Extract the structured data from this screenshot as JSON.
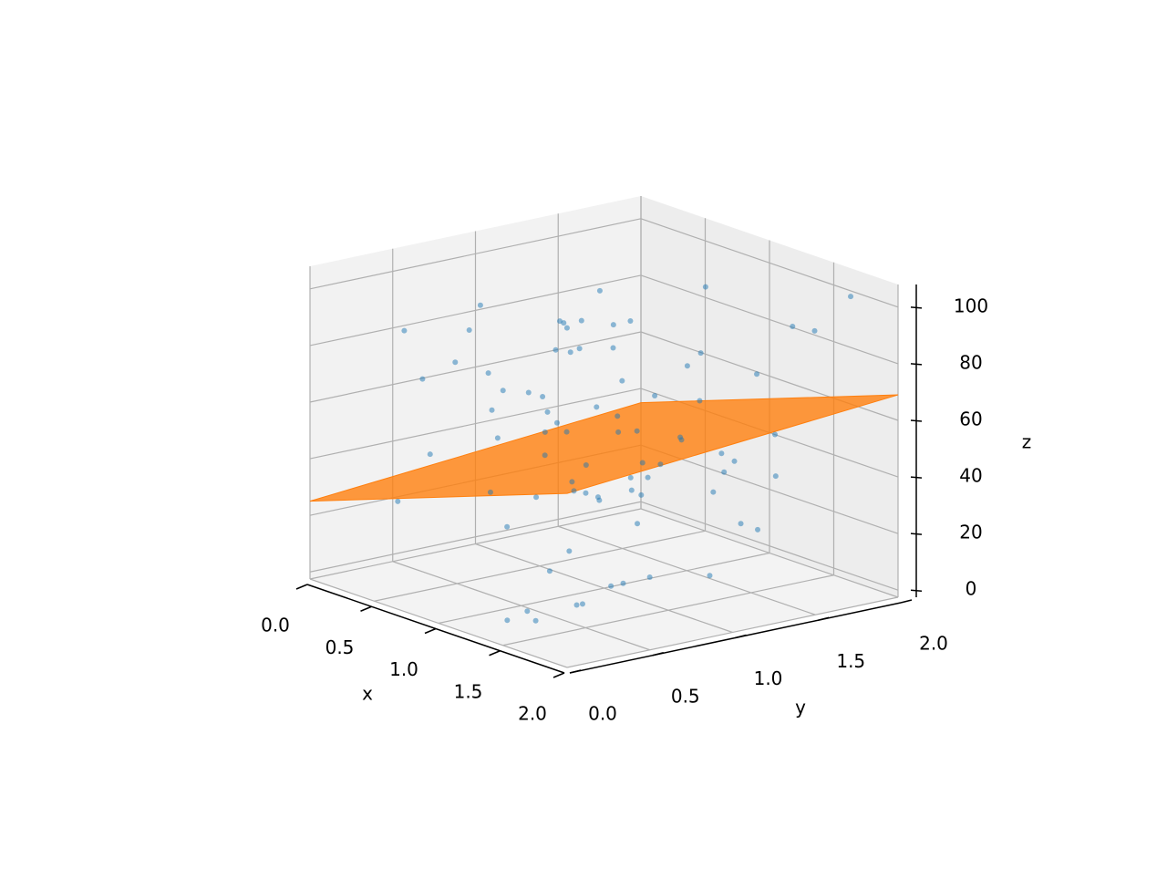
{
  "chart_data": {
    "type": "scatter3d",
    "x_label": "x",
    "y_label": "y",
    "z_label": "z",
    "xlim": [
      0,
      2
    ],
    "ylim": [
      0,
      2
    ],
    "zlim": [
      -2.5,
      108
    ],
    "xticks": [
      {
        "value": 0,
        "label": "0.0"
      },
      {
        "value": 0.5,
        "label": "0.5"
      },
      {
        "value": 1,
        "label": "1.0"
      },
      {
        "value": 1.5,
        "label": "1.5"
      },
      {
        "value": 2,
        "label": "2.0"
      }
    ],
    "yticks": [
      {
        "value": 0,
        "label": "0.0"
      },
      {
        "value": 0.5,
        "label": "0.5"
      },
      {
        "value": 1,
        "label": "1.0"
      },
      {
        "value": 1.5,
        "label": "1.5"
      },
      {
        "value": 2,
        "label": "2.0"
      }
    ],
    "zticks": [
      0,
      20,
      40,
      60,
      80,
      100
    ],
    "grid": true,
    "points": {
      "color": "#1f77b4",
      "x": [
        0.12,
        1.85,
        0.67,
        1.43,
        0.95,
        0.31,
        1.72,
        0.58,
        1.21,
        1.96,
        0.04,
        0.83,
        1.55,
        0.26,
        1.09,
        1.67,
        0.49,
        1.33,
        0.77,
        1.91,
        0.18,
        1.02,
        1.48,
        0.62,
        1.79,
        0.39,
        1.15,
        0.88,
        1.62,
        0.07,
        1.27,
        0.53,
        1.94,
        0.71,
        1.38,
        0.22,
        1.06,
        1.83,
        0.45,
        1.59,
        0.93,
        0.15,
        1.74,
        0.36,
        1.19,
        0.81,
        1.51,
        0.02,
        1.88,
        0.64,
        1.41,
        0.27,
        1.12,
        1.69,
        0.56,
        0.98,
        1.31,
        0.41,
        1.77,
        0.86,
        0.09,
        1.24,
        1.57,
        0.69,
        1.99,
        0.33,
        1.04,
        1.46,
        0.74,
        0.19,
        1.65,
        0.51,
        1.36,
        0.91,
        1.81,
        0.29,
        1.17,
        0.61,
        1.53,
        0.05
      ],
      "y": [
        1.44,
        0.21,
        1.87,
        0.63,
        1.12,
        0.95,
        1.58,
        0.08,
        1.76,
        0.37,
        1.29,
        0.84,
        0.16,
        1.63,
        0.52,
        1.97,
        0.71,
        1.05,
        1.38,
        0.46,
        0.89,
        1.71,
        0.27,
        1.52,
        0.03,
        1.19,
        0.66,
        1.92,
        0.41,
        1.08,
        0.58,
        1.34,
        0.93,
        1.81,
        0.12,
        1.47,
        0.76,
        0.31,
        1.66,
        1.01,
        0.24,
        1.55,
        0.69,
        1.23,
        1.89,
        0.47,
        0.14,
        1.39,
        0.82,
        1.74,
        1.61,
        0.36,
        1.94,
        0.55,
        1.16,
        0.79,
        0.06,
        1.43,
        0.98,
        1.27,
        0.61,
        1.09,
        1.83,
        0.19,
        0.87,
        1.68,
        1.31,
        0.44,
        1.99,
        0.73,
        0.33,
        1.49,
        0.11,
        1.78,
        0.57,
        1.21,
        0.91,
        1.36,
        0.26,
        1.59
      ],
      "z": [
        72,
        15,
        88,
        41,
        56,
        9,
        94,
        33,
        67,
        22,
        48,
        81,
        5,
        63,
        37,
        99,
        27,
        70,
        12,
        53,
        86,
        30,
        61,
        18,
        77,
        44,
        96,
        7,
        58,
        35,
        20,
        91,
        47,
        66,
        3,
        74,
        39,
        83,
        25,
        59,
        97,
        11,
        52,
        79,
        29,
        64,
        8,
        45,
        92,
        36,
        17,
        85,
        42,
        69,
        23,
        55,
        90,
        14,
        76,
        31,
        62,
        4,
        87,
        50,
        19,
        73,
        38,
        95,
        26,
        68,
        10,
        57,
        84,
        34,
        71,
        46,
        2,
        80,
        21,
        60
      ]
    },
    "surface": {
      "color": "#ff7f0e",
      "x": [
        0,
        2
      ],
      "y": [
        0,
        2
      ],
      "z": [
        [
          25,
          35
        ],
        [
          59,
          69
        ]
      ]
    }
  }
}
